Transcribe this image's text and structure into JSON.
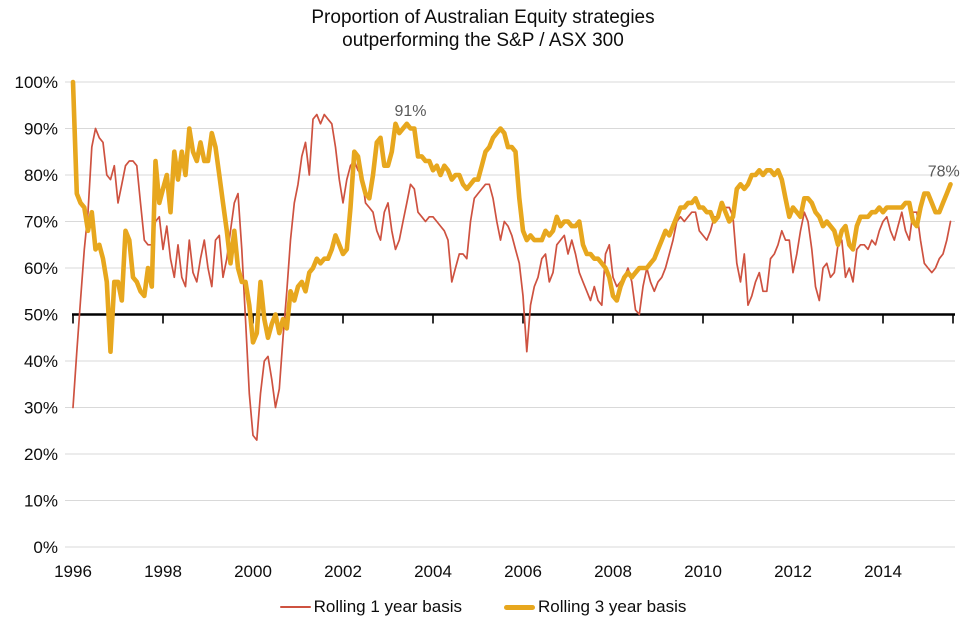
{
  "title": {
    "line1": "Proportion of Australian Equity strategies",
    "line2": "outperforming the S&P / ASX 300"
  },
  "colors": {
    "rolling_1yr": "#CE5240",
    "rolling_3yr": "#E7A71E",
    "gridline": "#D9D9D9",
    "reference_line": "#000000",
    "annotation": "#595959",
    "text": "#0d0d0d"
  },
  "axes": {
    "y_tick_labels": [
      "100%",
      "90%",
      "80%",
      "70%",
      "60%",
      "50%",
      "40%",
      "30%",
      "20%",
      "10%",
      "0%"
    ],
    "x_tick_labels": [
      "1996",
      "1998",
      "2000",
      "2002",
      "2004",
      "2006",
      "2008",
      "2010",
      "2012",
      "2014"
    ],
    "y_min": 0,
    "y_max": 100,
    "reference_line_pct": 50
  },
  "annotations": [
    {
      "text": "91%",
      "year": 2003.5,
      "pct": 94
    },
    {
      "text": "78%",
      "year": 2015.35,
      "pct": 81
    }
  ],
  "legend": {
    "item_1yr": "Rolling 1 year basis",
    "item_3yr": "Rolling 3 year basis"
  },
  "chart_data": {
    "type": "line",
    "title": "Proportion of Australian Equity strategies outperforming the S&P / ASX 300",
    "x_start_year": 1996,
    "x_step_months": 1,
    "x_end_label": "mid-2015",
    "ylim": [
      0,
      100
    ],
    "grid": true,
    "legend_position": "bottom",
    "reference_line_pct": 50,
    "series": [
      {
        "name": "Rolling 1 year basis",
        "color_key": "rolling_1yr",
        "stroke_width": 1.7,
        "values": [
          30,
          42,
          53,
          64,
          72,
          86,
          90,
          88,
          87,
          80,
          79,
          82,
          74,
          78,
          82,
          83,
          83,
          82,
          74,
          66,
          65,
          65,
          70,
          71,
          64,
          69,
          62,
          58,
          65,
          58,
          56,
          66,
          59,
          57,
          62,
          66,
          60,
          56,
          66,
          67,
          58,
          62,
          68,
          74,
          76,
          64,
          49,
          33,
          24,
          23,
          33,
          40,
          41,
          36,
          30,
          34,
          45,
          55,
          66,
          74,
          78,
          84,
          87,
          80,
          92,
          93,
          91,
          93,
          92,
          91,
          86,
          79,
          74,
          79,
          82,
          83,
          81,
          80,
          74,
          73,
          72,
          68,
          66,
          72,
          74,
          68,
          64,
          66,
          70,
          74,
          78,
          77,
          72,
          71,
          70,
          71,
          71,
          70,
          69,
          68,
          66,
          57,
          60,
          63,
          63,
          62,
          70,
          75,
          76,
          77,
          78,
          78,
          75,
          70,
          66,
          70,
          69,
          67,
          64,
          61,
          54,
          42,
          52,
          56,
          58,
          62,
          63,
          57,
          59,
          65,
          66,
          67,
          63,
          66,
          63,
          59,
          57,
          55,
          53,
          56,
          53,
          52,
          63,
          65,
          58,
          56,
          57,
          58,
          60,
          57,
          51,
          50,
          56,
          60,
          57,
          55,
          57,
          58,
          60,
          63,
          66,
          70,
          71,
          70,
          71,
          72,
          72,
          68,
          67,
          66,
          68,
          71,
          71,
          73,
          73,
          73,
          71,
          61,
          57,
          63,
          52,
          54,
          57,
          59,
          55,
          55,
          62,
          63,
          65,
          68,
          66,
          66,
          59,
          63,
          68,
          72,
          70,
          64,
          56,
          53,
          60,
          61,
          58,
          59,
          65,
          66,
          58,
          60,
          57,
          64,
          65,
          65,
          64,
          66,
          65,
          68,
          70,
          71,
          68,
          66,
          69,
          72,
          68,
          66,
          72,
          72,
          66,
          61,
          60,
          59,
          60,
          62,
          63,
          66,
          70
        ]
      },
      {
        "name": "Rolling 3 year basis",
        "color_key": "rolling_3yr",
        "stroke_width": 4.6,
        "values": [
          100,
          76,
          74,
          73,
          68,
          72,
          64,
          65,
          62,
          57,
          42,
          57,
          57,
          53,
          68,
          66,
          58,
          57,
          55,
          54,
          60,
          56,
          83,
          74,
          77,
          80,
          72,
          85,
          79,
          85,
          80,
          90,
          85,
          83,
          87,
          83,
          83,
          89,
          86,
          80,
          74,
          68,
          61,
          68,
          60,
          57,
          57,
          52,
          44,
          46,
          57,
          49,
          45,
          48,
          50,
          46,
          49,
          47,
          55,
          53,
          56,
          57,
          55,
          59,
          60,
          62,
          61,
          62,
          62,
          64,
          67,
          65,
          63,
          64,
          73,
          85,
          84,
          79,
          76,
          75,
          80,
          87,
          88,
          82,
          82,
          85,
          91,
          89,
          90,
          91,
          90,
          90,
          84,
          84,
          83,
          83,
          81,
          82,
          80,
          82,
          81,
          79,
          80,
          80,
          78,
          77,
          78,
          79,
          79,
          82,
          85,
          86,
          88,
          89,
          90,
          89,
          86,
          86,
          85,
          75,
          68,
          66,
          67,
          66,
          66,
          66,
          68,
          67,
          68,
          71,
          69,
          70,
          70,
          69,
          69,
          70,
          65,
          63,
          63,
          62,
          62,
          61,
          60,
          58,
          54,
          53,
          56,
          58,
          59,
          58,
          59,
          60,
          60,
          60,
          61,
          62,
          64,
          66,
          68,
          67,
          69,
          71,
          73,
          73,
          74,
          74,
          75,
          73,
          73,
          72,
          72,
          70,
          71,
          74,
          72,
          70,
          71,
          77,
          78,
          77,
          78,
          80,
          80,
          81,
          80,
          81,
          81,
          80,
          81,
          79,
          75,
          71,
          73,
          72,
          71,
          75,
          75,
          74,
          72,
          71,
          69,
          70,
          69,
          68,
          65,
          68,
          69,
          65,
          64,
          69,
          71,
          71,
          71,
          72,
          72,
          73,
          72,
          73,
          73,
          73,
          73,
          73,
          74,
          74,
          70,
          69,
          73,
          76,
          76,
          74,
          72,
          72,
          74,
          76,
          78
        ]
      }
    ]
  }
}
